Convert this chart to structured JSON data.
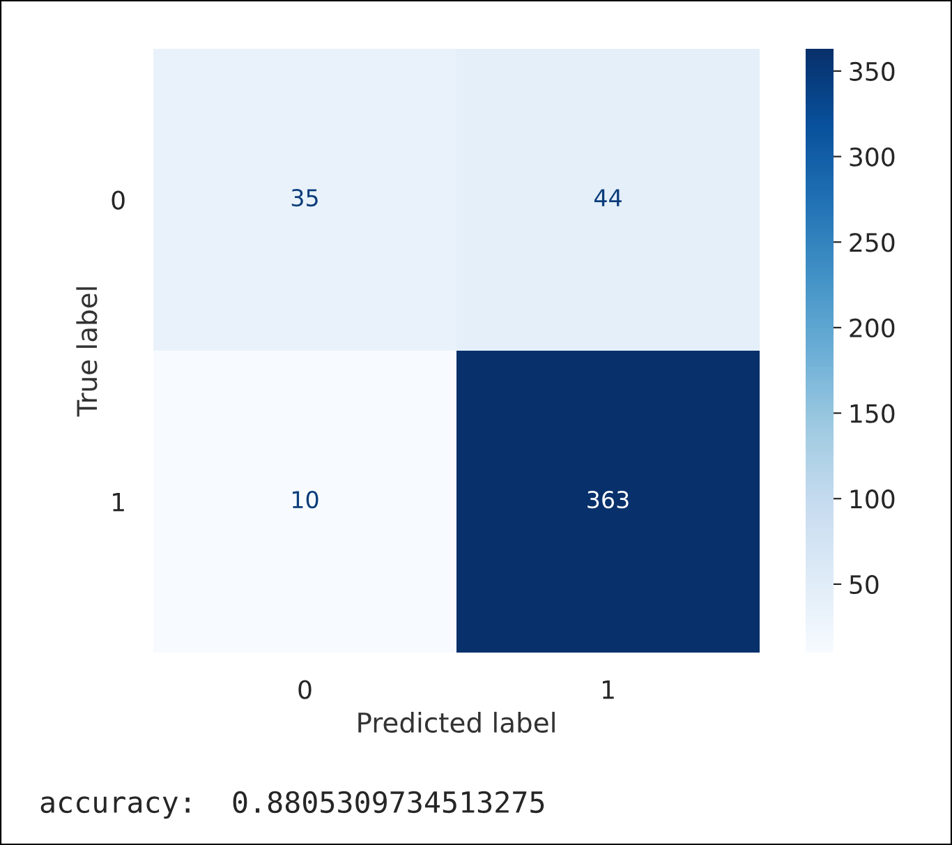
{
  "chart_data": {
    "type": "heatmap",
    "xlabel": "Predicted label",
    "ylabel": "True label",
    "categories": [
      "0",
      "1"
    ],
    "y_categories": [
      "0",
      "1"
    ],
    "cells": [
      [
        35,
        44
      ],
      [
        10,
        363
      ]
    ],
    "data_labels": true,
    "clim": [
      10,
      363
    ],
    "cticks": [
      50,
      100,
      150,
      200,
      250,
      300,
      350
    ],
    "annotations": [
      "accuracy:  0.8805309734513275"
    ]
  }
}
